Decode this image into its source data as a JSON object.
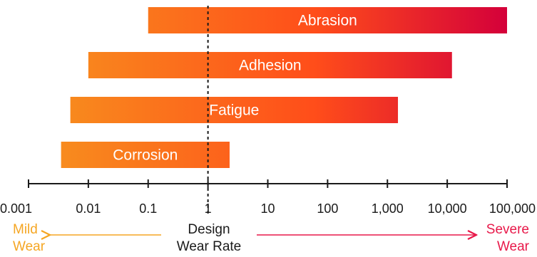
{
  "chart_data": {
    "type": "bar",
    "orientation": "horizontal-range",
    "scale": "log",
    "xlim": [
      0.001,
      100000
    ],
    "bars": [
      {
        "name": "Abrasion",
        "start": 0.1,
        "end": 100000
      },
      {
        "name": "Adhesion",
        "start": 0.01,
        "end": 12000
      },
      {
        "name": "Fatigue",
        "start": 0.005,
        "end": 1500
      },
      {
        "name": "Corrosion",
        "start": 0.0035,
        "end": 2.3
      }
    ],
    "ticks": [
      {
        "value": 0.001,
        "label": "0.001"
      },
      {
        "value": 0.01,
        "label": "0.01"
      },
      {
        "value": 0.1,
        "label": "0.1"
      },
      {
        "value": 1,
        "label": "1"
      },
      {
        "value": 10,
        "label": "10"
      },
      {
        "value": 100,
        "label": "100"
      },
      {
        "value": 1000,
        "label": "1,000"
      },
      {
        "value": 10000,
        "label": "10,000"
      },
      {
        "value": 100000,
        "label": "100,000"
      }
    ],
    "reference_line": {
      "value": 1,
      "label_line1": "Design",
      "label_line2": "Wear Rate"
    },
    "left_annotation": {
      "line1": "Mild",
      "line2": "Wear",
      "color": "#f5a623"
    },
    "right_annotation": {
      "line1": "Severe",
      "line2": "Wear",
      "color": "#e8194a"
    },
    "gradient": {
      "start": "#f7931e",
      "mid": "#ff4d1a",
      "end": "#d4003a"
    },
    "grid": false
  }
}
